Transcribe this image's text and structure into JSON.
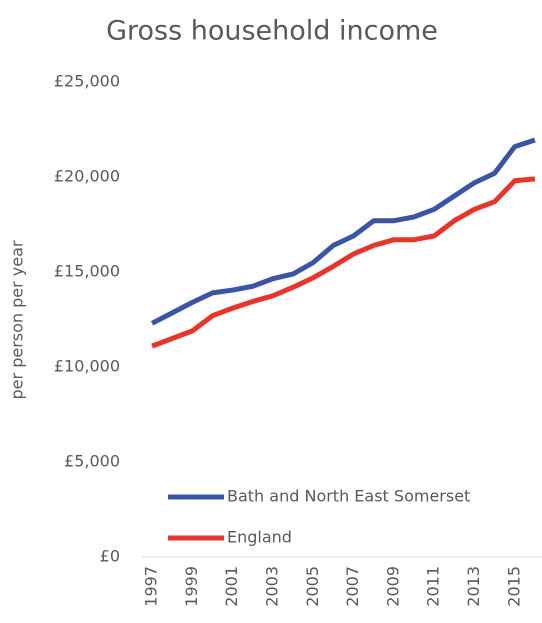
{
  "chart_data": {
    "type": "line",
    "title": "Gross household income",
    "y_label": "per person per year",
    "categories": [
      "1997",
      null,
      "1999",
      null,
      "2001",
      null,
      "2003",
      null,
      "2005",
      null,
      "2007",
      null,
      "2009",
      null,
      "2011",
      null,
      "2013",
      null,
      "2015",
      null
    ],
    "series": [
      {
        "name": "Bath and North East Somerset",
        "color": "#3b54a5",
        "values": [
          12300,
          12850,
          13400,
          13900,
          14050,
          14250,
          14650,
          14900,
          15500,
          16400,
          16900,
          17700,
          17700,
          17900,
          18300,
          19000,
          19700,
          20200,
          21600,
          21950
        ]
      },
      {
        "name": "England",
        "color": "#e8352a",
        "values": [
          11100,
          11500,
          11900,
          12700,
          13100,
          13450,
          13750,
          14200,
          14700,
          15300,
          15950,
          16400,
          16700,
          16700,
          16900,
          17700,
          18300,
          18700,
          19800,
          19900
        ]
      }
    ],
    "ylim": [
      0,
      25000
    ],
    "yticks": [
      {
        "value": 0,
        "label": "£0"
      },
      {
        "value": 5000,
        "label": "£5,000"
      },
      {
        "value": 10000,
        "label": "£10,000"
      },
      {
        "value": 15000,
        "label": "£15,000"
      },
      {
        "value": 20000,
        "label": "£20,000"
      },
      {
        "value": 25000,
        "label": "£25,000"
      }
    ],
    "grid": false,
    "legend": "lower right"
  }
}
